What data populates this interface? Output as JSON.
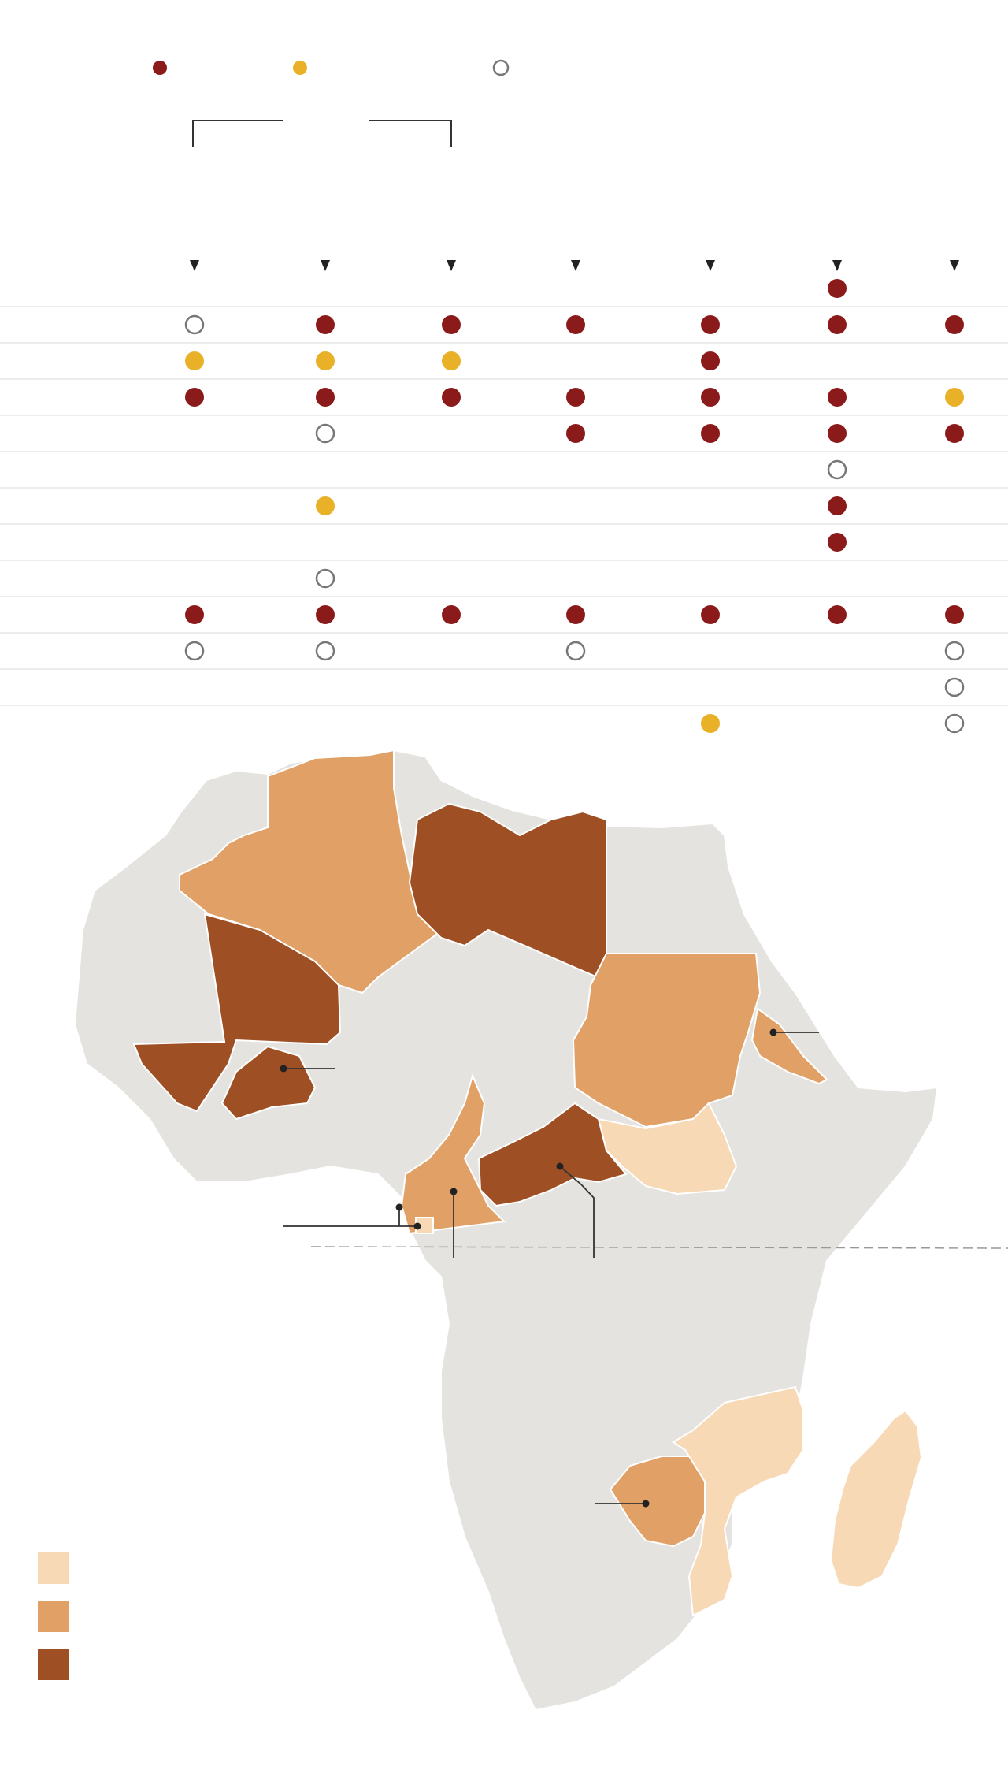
{
  "colors": {
    "dot_red": "#8b1a1a",
    "dot_yellow": "#e8b128",
    "open_circle": "#777777",
    "row_line": "#e6e6e6",
    "land_default": "#e4e3e0",
    "choro_light": "#f8d9b6",
    "choro_mid": "#e0a066",
    "choro_dark": "#9e4f24",
    "equator": "#999999"
  },
  "legend": {
    "markers": [
      {
        "kind": "filled",
        "color": "dot_red"
      },
      {
        "kind": "filled",
        "color": "dot_yellow"
      },
      {
        "kind": "open",
        "color": "open_circle"
      }
    ]
  },
  "matrix": {
    "columns": 7,
    "rows": [
      [
        "",
        "",
        "",
        "",
        "",
        "red",
        ""
      ],
      [
        "open",
        "red",
        "red",
        "red",
        "red",
        "red",
        "red"
      ],
      [
        "yellow",
        "yellow",
        "yellow",
        "",
        "red",
        "",
        ""
      ],
      [
        "red",
        "red",
        "red",
        "red",
        "red",
        "red",
        "yellow"
      ],
      [
        "",
        "open",
        "",
        "red",
        "red",
        "red",
        "red"
      ],
      [
        "",
        "",
        "",
        "",
        "",
        "open",
        ""
      ],
      [
        "",
        "yellow",
        "",
        "",
        "",
        "red",
        ""
      ],
      [
        "",
        "",
        "",
        "",
        "",
        "red",
        ""
      ],
      [
        "",
        "open",
        "",
        "",
        "",
        "",
        ""
      ],
      [
        "red",
        "red",
        "red",
        "red",
        "red",
        "red",
        "red"
      ],
      [
        "open",
        "open",
        "",
        "open",
        "",
        "",
        "open"
      ],
      [
        "",
        "",
        "",
        "",
        "",
        "",
        "open"
      ],
      [
        "",
        "",
        "",
        "",
        "yellow",
        "",
        "open"
      ]
    ]
  },
  "map": {
    "choropleth_levels": [
      "light",
      "mid",
      "dark"
    ],
    "highlighted": [
      {
        "region": "algeria",
        "level": "mid"
      },
      {
        "region": "libya",
        "level": "dark"
      },
      {
        "region": "mali",
        "level": "dark"
      },
      {
        "region": "burkina-faso",
        "level": "dark"
      },
      {
        "region": "guinea",
        "level": "dark"
      },
      {
        "region": "sudan",
        "level": "mid"
      },
      {
        "region": "eritrea",
        "level": "mid"
      },
      {
        "region": "south-sudan",
        "level": "light"
      },
      {
        "region": "central-african-republic",
        "level": "dark"
      },
      {
        "region": "cameroon",
        "level": "mid"
      },
      {
        "region": "equatorial-guinea",
        "level": "light"
      },
      {
        "region": "zimbabwe",
        "level": "mid"
      },
      {
        "region": "mozambique",
        "level": "light"
      },
      {
        "region": "madagascar",
        "level": "light"
      }
    ]
  }
}
